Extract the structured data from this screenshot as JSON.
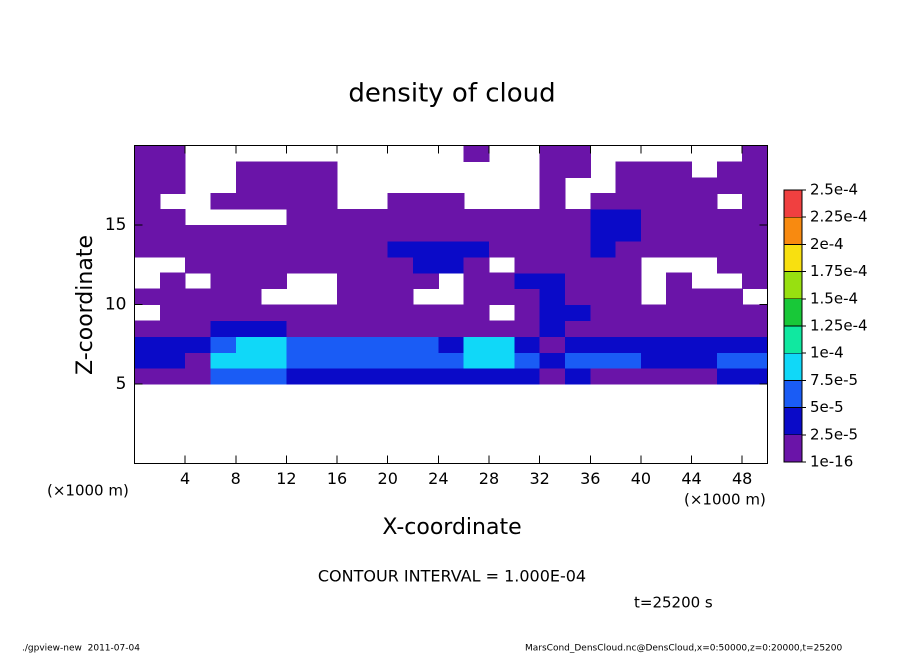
{
  "chart_data": {
    "type": "contour",
    "title": "density of cloud",
    "xlabel": "X-coordinate",
    "ylabel": "Z-coordinate",
    "xunit_left": "(×1000 m)",
    "xunit_right": "(×1000 m)",
    "contour_interval": "CONTOUR INTERVAL = 1.000E-04",
    "time_label": "t=25200 s",
    "footer_left": "./gpview-new  2011-07-04",
    "footer_right": "MarsCond_DensCloud.nc@DensCloud,x=0:50000,z=0:20000,t=25200",
    "xlim": [
      0,
      50
    ],
    "ylim": [
      0,
      20
    ],
    "xticks": [
      4,
      8,
      12,
      16,
      20,
      24,
      28,
      32,
      36,
      40,
      44,
      48
    ],
    "yticks": [
      5,
      10,
      15
    ],
    "x": [
      1,
      3,
      5,
      7,
      9,
      11,
      13,
      15,
      17,
      19,
      21,
      23,
      25,
      27,
      29,
      31,
      33,
      35,
      37,
      39,
      41,
      43,
      45,
      47,
      49
    ],
    "y": [
      0.5,
      1.5,
      2.5,
      3.5,
      4.5,
      5.5,
      6.5,
      7.5,
      8.5,
      9.5,
      10.5,
      11.5,
      12.5,
      13.5,
      14.5,
      15.5,
      16.5,
      17.5,
      18.5,
      19.5
    ],
    "values": [
      [
        0,
        0,
        0,
        0,
        0,
        0,
        0,
        0,
        0,
        0,
        0,
        0,
        0,
        0,
        0,
        0,
        0,
        0,
        0,
        0,
        0,
        0,
        0,
        0,
        0
      ],
      [
        0,
        0,
        0,
        0,
        0,
        0,
        0,
        0,
        0,
        0,
        0,
        0,
        0,
        0,
        0,
        0,
        0,
        0,
        0,
        0,
        0,
        0,
        0,
        0,
        0
      ],
      [
        0,
        0,
        0,
        0,
        0,
        0,
        0,
        0,
        0,
        0,
        0,
        0,
        0,
        0,
        0,
        0,
        0,
        0,
        0,
        0,
        0,
        0,
        0,
        0,
        0
      ],
      [
        0,
        0,
        0,
        0,
        0,
        0,
        0,
        0,
        0,
        0,
        0,
        0,
        0,
        0,
        0,
        0,
        0,
        0,
        0,
        0,
        0,
        0,
        0,
        0,
        0
      ],
      [
        0,
        0,
        0,
        0,
        0,
        0,
        0,
        0,
        0,
        0,
        0,
        0,
        0,
        0,
        0,
        0,
        0,
        0,
        0,
        0,
        0,
        0,
        0,
        0,
        0
      ],
      [
        1e-05,
        1e-05,
        1e-05,
        6e-05,
        6e-05,
        6e-05,
        3.5e-05,
        3.5e-05,
        3.5e-05,
        3.5e-05,
        3.5e-05,
        3.5e-05,
        3.5e-05,
        3.5e-05,
        3.5e-05,
        3.5e-05,
        1e-05,
        3.5e-05,
        1e-05,
        1e-05,
        1e-05,
        1e-05,
        1e-05,
        3.5e-05,
        3.5e-05
      ],
      [
        3.5e-05,
        3.5e-05,
        1e-05,
        8.5e-05,
        8.5e-05,
        8.5e-05,
        6e-05,
        6e-05,
        6e-05,
        6e-05,
        6e-05,
        6e-05,
        6e-05,
        8.5e-05,
        8.5e-05,
        6e-05,
        3.5e-05,
        6e-05,
        6e-05,
        6e-05,
        3.5e-05,
        3.5e-05,
        3.5e-05,
        6e-05,
        6e-05
      ],
      [
        3.5e-05,
        3.5e-05,
        3.5e-05,
        6e-05,
        8.5e-05,
        8.5e-05,
        6e-05,
        6e-05,
        6e-05,
        6e-05,
        6e-05,
        6e-05,
        3.5e-05,
        8.5e-05,
        8.5e-05,
        3.5e-05,
        1e-05,
        3.5e-05,
        3.5e-05,
        3.5e-05,
        3.5e-05,
        3.5e-05,
        3.5e-05,
        3.5e-05,
        3.5e-05
      ],
      [
        1e-05,
        1e-05,
        1e-05,
        3.5e-05,
        3.5e-05,
        3.5e-05,
        1e-05,
        1e-05,
        1e-05,
        1e-05,
        1e-05,
        1e-05,
        1e-05,
        1e-05,
        1e-05,
        1e-05,
        3.5e-05,
        1e-05,
        1e-05,
        1e-05,
        1e-05,
        1e-05,
        1e-05,
        1e-05,
        1e-05
      ],
      [
        0,
        1e-05,
        1e-05,
        1e-05,
        1e-05,
        1e-05,
        1e-05,
        1e-05,
        1e-05,
        1e-05,
        1e-05,
        1e-05,
        1e-05,
        1e-05,
        0,
        1e-05,
        3.5e-05,
        3.5e-05,
        1e-05,
        1e-05,
        1e-05,
        1e-05,
        1e-05,
        1e-05,
        1e-05
      ],
      [
        1e-05,
        1e-05,
        1e-05,
        1e-05,
        1e-05,
        0,
        0,
        0,
        1e-05,
        1e-05,
        1e-05,
        0,
        0,
        1e-05,
        1e-05,
        1e-05,
        3.5e-05,
        1e-05,
        1e-05,
        1e-05,
        0,
        1e-05,
        1e-05,
        1e-05,
        0
      ],
      [
        0,
        1e-05,
        0,
        1e-05,
        1e-05,
        1e-05,
        0,
        0,
        1e-05,
        1e-05,
        1e-05,
        1e-05,
        0,
        1e-05,
        1e-05,
        3.5e-05,
        3.5e-05,
        1e-05,
        1e-05,
        1e-05,
        0,
        1e-05,
        0,
        0,
        1e-05
      ],
      [
        0,
        0,
        1e-05,
        1e-05,
        1e-05,
        1e-05,
        1e-05,
        1e-05,
        1e-05,
        1e-05,
        1e-05,
        3.5e-05,
        3.5e-05,
        1e-05,
        0,
        1e-05,
        1e-05,
        1e-05,
        1e-05,
        1e-05,
        0,
        0,
        0,
        1e-05,
        1e-05
      ],
      [
        1e-05,
        1e-05,
        1e-05,
        1e-05,
        1e-05,
        1e-05,
        1e-05,
        1e-05,
        1e-05,
        1e-05,
        3.5e-05,
        3.5e-05,
        3.5e-05,
        3.5e-05,
        1e-05,
        1e-05,
        1e-05,
        1e-05,
        3.5e-05,
        1e-05,
        1e-05,
        1e-05,
        1e-05,
        1e-05,
        1e-05
      ],
      [
        1e-05,
        1e-05,
        1e-05,
        1e-05,
        1e-05,
        1e-05,
        1e-05,
        1e-05,
        1e-05,
        1e-05,
        1e-05,
        1e-05,
        1e-05,
        1e-05,
        1e-05,
        1e-05,
        1e-05,
        1e-05,
        3.5e-05,
        3.5e-05,
        1e-05,
        1e-05,
        1e-05,
        1e-05,
        1e-05
      ],
      [
        1e-05,
        1e-05,
        0,
        0,
        0,
        0,
        1e-05,
        1e-05,
        1e-05,
        1e-05,
        1e-05,
        1e-05,
        1e-05,
        1e-05,
        1e-05,
        1e-05,
        1e-05,
        1e-05,
        3.5e-05,
        3.5e-05,
        1e-05,
        1e-05,
        1e-05,
        1e-05,
        1e-05
      ],
      [
        1e-05,
        0,
        0,
        1e-05,
        1e-05,
        1e-05,
        1e-05,
        1e-05,
        0,
        0,
        1e-05,
        1e-05,
        1e-05,
        0,
        0,
        0,
        1e-05,
        0,
        1e-05,
        1e-05,
        1e-05,
        1e-05,
        1e-05,
        0,
        1e-05
      ],
      [
        1e-05,
        1e-05,
        0,
        0,
        1e-05,
        1e-05,
        1e-05,
        1e-05,
        0,
        0,
        0,
        0,
        0,
        0,
        0,
        0,
        1e-05,
        0,
        0,
        1e-05,
        1e-05,
        1e-05,
        1e-05,
        1e-05,
        1e-05
      ],
      [
        1e-05,
        1e-05,
        0,
        0,
        1e-05,
        1e-05,
        1e-05,
        1e-05,
        0,
        0,
        0,
        0,
        0,
        0,
        0,
        0,
        1e-05,
        1e-05,
        0,
        1e-05,
        1e-05,
        1e-05,
        0,
        1e-05,
        1e-05
      ],
      [
        1e-05,
        1e-05,
        0,
        0,
        0,
        0,
        0,
        0,
        0,
        0,
        0,
        0,
        0,
        1e-05,
        0,
        0,
        1e-05,
        1e-05,
        0,
        0,
        0,
        0,
        0,
        0,
        1e-05
      ]
    ],
    "levels": [
      {
        "value": 1e-16,
        "label": "1e-16"
      },
      {
        "value": 2.5e-05,
        "label": "2.5e-5"
      },
      {
        "value": 5e-05,
        "label": "5e-5"
      },
      {
        "value": 7.5e-05,
        "label": "7.5e-5"
      },
      {
        "value": 0.0001,
        "label": "1e-4"
      },
      {
        "value": 0.000125,
        "label": "1.25e-4"
      },
      {
        "value": 0.00015,
        "label": "1.5e-4"
      },
      {
        "value": 0.000175,
        "label": "1.75e-4"
      },
      {
        "value": 0.0002,
        "label": "2e-4"
      },
      {
        "value": 0.000225,
        "label": "2.25e-4"
      },
      {
        "value": 0.00025,
        "label": "2.5e-4"
      }
    ],
    "colors": [
      "#6a14a8",
      "#0a0ac8",
      "#1a5cf5",
      "#10d8f8",
      "#10e8a0",
      "#18c838",
      "#98e010",
      "#f8e010",
      "#f88a10",
      "#f04040"
    ]
  }
}
